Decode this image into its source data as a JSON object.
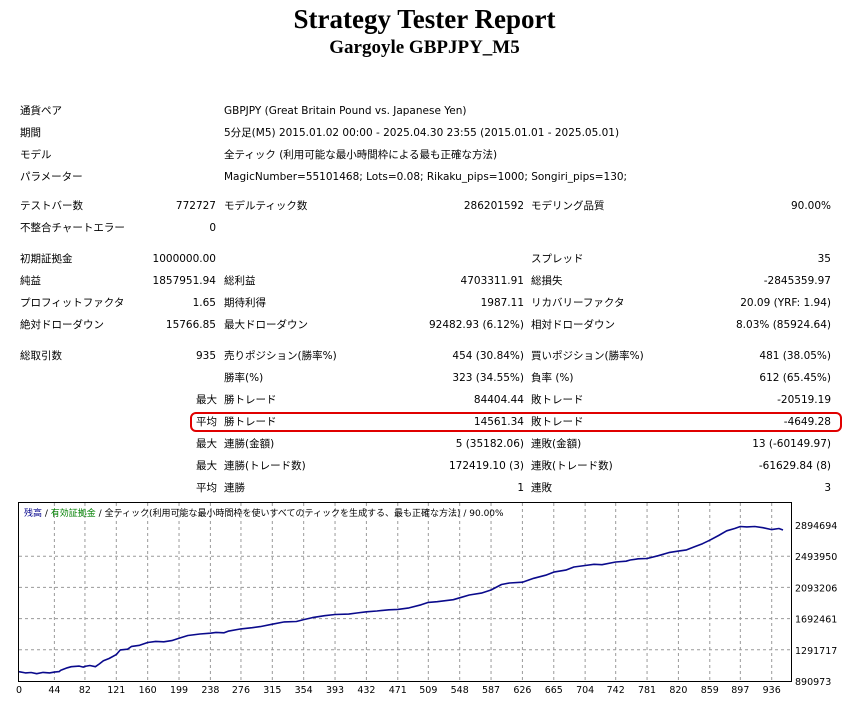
{
  "title": "Strategy Tester Report",
  "subtitle": "Gargoyle GBPJPY_M5",
  "info": [
    {
      "label": "通貨ペア",
      "value": "GBPJPY (Great Britain Pound vs. Japanese Yen)"
    },
    {
      "label": "期間",
      "value": "5分足(M5) 2015.01.02 00:00 - 2025.04.30 23:55 (2015.01.01 - 2025.05.01)"
    },
    {
      "label": "モデル",
      "value": "全ティック (利用可能な最小時間枠による最も正確な方法)"
    },
    {
      "label": "パラメーター",
      "value": "MagicNumber=55101468; Lots=0.08; Rikaku_pips=1000; Songiri_pips=130;"
    }
  ],
  "bars": {
    "bars_label": "テストバー数",
    "bars_value": "772727",
    "ticks_label": "モデルティック数",
    "ticks_value": "286201592",
    "quality_label": "モデリング品質",
    "quality_value": "90.00%",
    "errors_label": "不整合チャートエラー",
    "errors_value": "0"
  },
  "deposit": {
    "label": "初期証拠金",
    "value": "1000000.00",
    "spread_label": "スプレッド",
    "spread_value": "35"
  },
  "profit": {
    "net_label": "純益",
    "net_value": "1857951.94",
    "gross_profit_label": "総利益",
    "gross_profit_value": "4703311.91",
    "gross_loss_label": "総損失",
    "gross_loss_value": "-2845359.97",
    "pf_label": "プロフィットファクタ",
    "pf_value": "1.65",
    "payoff_label": "期待利得",
    "payoff_value": "1987.11",
    "rf_label": "リカバリーファクタ",
    "rf_value": "20.09 (YRF: 1.94)",
    "abs_dd_label": "絶対ドローダウン",
    "abs_dd_value": "15766.85",
    "max_dd_label": "最大ドローダウン",
    "max_dd_value": "92482.93 (6.12%)",
    "rel_dd_label": "相対ドローダウン",
    "rel_dd_value": "8.03% (85924.64)"
  },
  "trades": {
    "total_label": "総取引数",
    "total_value": "935",
    "short_label": "売りポジション(勝率%)",
    "short_value": "454 (30.84%)",
    "long_label": "買いポジション(勝率%)",
    "long_value": "481 (38.05%)",
    "win_pct_label": "勝率(%)",
    "win_pct_value": "323 (34.55%)",
    "loss_pct_label": "負率 (%)",
    "loss_pct_value": "612 (65.45%)",
    "max_prefix": "最大",
    "largest_win_label": "勝トレード",
    "largest_win_value": "84404.44",
    "largest_loss_label": "敗トレード",
    "largest_loss_value": "-20519.19",
    "avg_prefix": "平均",
    "avg_win_label": "勝トレード",
    "avg_win_value": "14561.34",
    "avg_loss_label": "敗トレード",
    "avg_loss_value": "-4649.28",
    "max_prefix2": "最大",
    "cons_wins_label": "連勝(金額)",
    "cons_wins_value": "5 (35182.06)",
    "cons_losses_label": "連敗(金額)",
    "cons_losses_value": "13 (-60149.97)",
    "max_prefix3": "最大",
    "cons_profit_label": "連勝(トレード数)",
    "cons_profit_value": "172419.10 (3)",
    "cons_loss_label": "連敗(トレード数)",
    "cons_loss_value": "-61629.84 (8)",
    "avg_prefix2": "平均",
    "avg_cons_wins_label": "連勝",
    "avg_cons_wins_value": "1",
    "avg_cons_losses_label": "連敗",
    "avg_cons_losses_value": "3"
  },
  "legend": {
    "balance": "残高",
    "sep1": " / ",
    "equity": "有効証拠金",
    "sep2": " / ",
    "rest": "全ティック(利用可能な最小時間枠を使いすべてのティックを生成する、最も正確な方法) / 90.00%"
  },
  "colors": {
    "balance_line": "#0a0a8c",
    "grid": "#9a9a9a",
    "highlight": "#e00000"
  },
  "chart_data": {
    "type": "line",
    "series": [
      {
        "name": "残高",
        "x": [
          0,
          8,
          15,
          22,
          30,
          38,
          44,
          50,
          52,
          60,
          65,
          75,
          80,
          82,
          88,
          95,
          100,
          105,
          112,
          121,
          126,
          135,
          140,
          150,
          160,
          170,
          180,
          190,
          199,
          210,
          225,
          238,
          245,
          255,
          260,
          276,
          290,
          300,
          315,
          330,
          345,
          354,
          365,
          380,
          393,
          410,
          420,
          432,
          445,
          460,
          471,
          485,
          500,
          509,
          520,
          540,
          548,
          560,
          575,
          587,
          600,
          610,
          626,
          640,
          655,
          665,
          680,
          690,
          704,
          715,
          725,
          742,
          755,
          760,
          770,
          781,
          795,
          808,
          820,
          830,
          840,
          850,
          859,
          870,
          880,
          890,
          897,
          905,
          915,
          925,
          936,
          945,
          950
        ],
        "y": [
          1010000,
          995000,
          1000000,
          985000,
          1002000,
          995000,
          1005000,
          1012000,
          1030000,
          1060000,
          1075000,
          1082000,
          1070000,
          1078000,
          1090000,
          1075000,
          1110000,
          1150000,
          1180000,
          1230000,
          1290000,
          1300000,
          1335000,
          1350000,
          1385000,
          1400000,
          1395000,
          1410000,
          1440000,
          1475000,
          1495000,
          1505000,
          1515000,
          1510000,
          1530000,
          1560000,
          1575000,
          1590000,
          1620000,
          1650000,
          1655000,
          1680000,
          1705000,
          1730000,
          1745000,
          1750000,
          1765000,
          1780000,
          1790000,
          1805000,
          1810000,
          1830000,
          1870000,
          1900000,
          1910000,
          1935000,
          1960000,
          1995000,
          2020000,
          2060000,
          2130000,
          2150000,
          2160000,
          2210000,
          2250000,
          2290000,
          2315000,
          2355000,
          2375000,
          2390000,
          2385000,
          2420000,
          2430000,
          2445000,
          2460000,
          2465000,
          2500000,
          2540000,
          2560000,
          2575000,
          2615000,
          2655000,
          2700000,
          2760000,
          2820000,
          2850000,
          2875000,
          2870000,
          2875000,
          2860000,
          2835000,
          2850000,
          2830000
        ]
      }
    ],
    "x_ticks": [
      "0",
      "44",
      "82",
      "121",
      "160",
      "199",
      "238",
      "276",
      "315",
      "354",
      "393",
      "432",
      "471",
      "509",
      "548",
      "587",
      "626",
      "665",
      "704",
      "742",
      "781",
      "820",
      "859",
      "897",
      "936"
    ],
    "y_ticks": [
      "2894694",
      "2493950",
      "2093206",
      "1692461",
      "1291717",
      "890973"
    ],
    "xlim": [
      0,
      960
    ],
    "ylim": [
      890973,
      2894694
    ],
    "grid": true
  }
}
